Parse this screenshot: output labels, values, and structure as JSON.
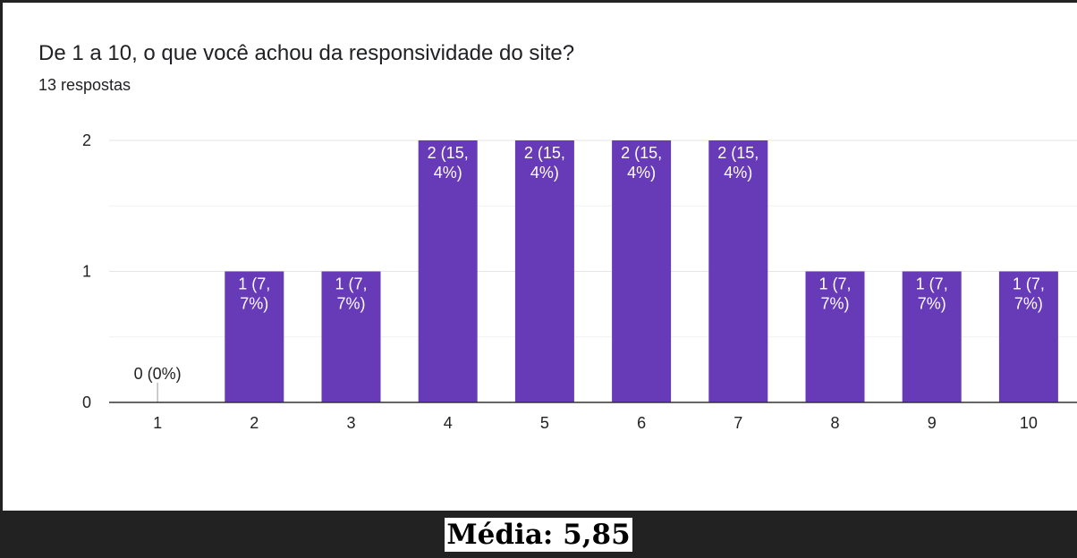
{
  "question": "De 1 a 10, o que você achou da responsividade do site?",
  "responses": "13 respostas",
  "caption": "Média: 5,85",
  "colors": {
    "bar": "#673ab7",
    "bar_label": "#ffffff",
    "grid": "#e6e6e6",
    "axis": "#333333",
    "text": "#222222"
  },
  "chart_data": {
    "type": "bar",
    "title": "",
    "xlabel": "",
    "ylabel": "",
    "categories": [
      "1",
      "2",
      "3",
      "4",
      "5",
      "6",
      "7",
      "8",
      "9",
      "10"
    ],
    "values": [
      0,
      1,
      1,
      2,
      2,
      2,
      2,
      1,
      1,
      1
    ],
    "data_labels": [
      "0 (0%)",
      "1 (7,\n7%)",
      "1 (7,\n7%)",
      "2 (15,\n4%)",
      "2 (15,\n4%)",
      "2 (15,\n4%)",
      "2 (15,\n4%)",
      "1 (7,\n7%)",
      "1 (7,\n7%)",
      "1 (7,\n7%)"
    ],
    "ylim": [
      0,
      2
    ],
    "yticks": [
      "0",
      "1",
      "2"
    ],
    "minor_gridlines": [
      0.5,
      1.5
    ],
    "grid": true,
    "legend": "none"
  }
}
